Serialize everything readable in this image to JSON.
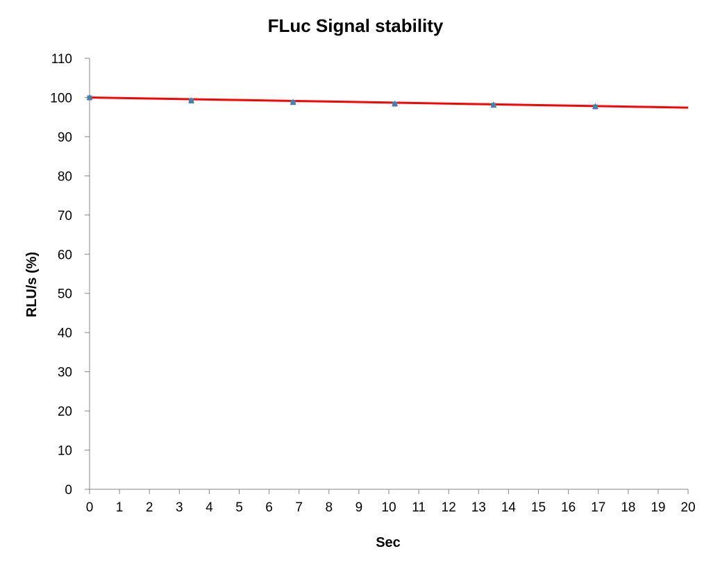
{
  "chart_data": {
    "type": "scatter",
    "title": "FLuc Signal stability",
    "xlabel": "Sec",
    "ylabel": "RLU/s (%)",
    "xlim": [
      0,
      20
    ],
    "ylim": [
      0,
      110
    ],
    "x_ticks": [
      0,
      1,
      2,
      3,
      4,
      5,
      6,
      7,
      8,
      9,
      10,
      11,
      12,
      13,
      14,
      15,
      16,
      17,
      18,
      19,
      20
    ],
    "y_ticks": [
      0,
      10,
      20,
      30,
      40,
      50,
      60,
      70,
      80,
      90,
      100,
      110
    ],
    "grid": false,
    "legend": "none",
    "series": [
      {
        "x": [
          0,
          3.4,
          6.8,
          10.2,
          13.5,
          16.9
        ],
        "y": [
          100,
          99.2,
          98.8,
          98.4,
          98.1,
          97.7
        ],
        "marker": "triangle",
        "color": "#4f81bd"
      },
      {
        "x": [
          0,
          3.4,
          6.8,
          10.2,
          13.5,
          16.9
        ],
        "y": [
          99.9,
          99.1,
          98.7,
          98.3,
          98.0,
          97.6
        ],
        "marker": "square",
        "color": "#4a7fa8"
      }
    ],
    "trendline": {
      "type": "linear",
      "x": [
        0,
        20
      ],
      "y": [
        100,
        97.4
      ],
      "color": "#ff0000"
    }
  }
}
